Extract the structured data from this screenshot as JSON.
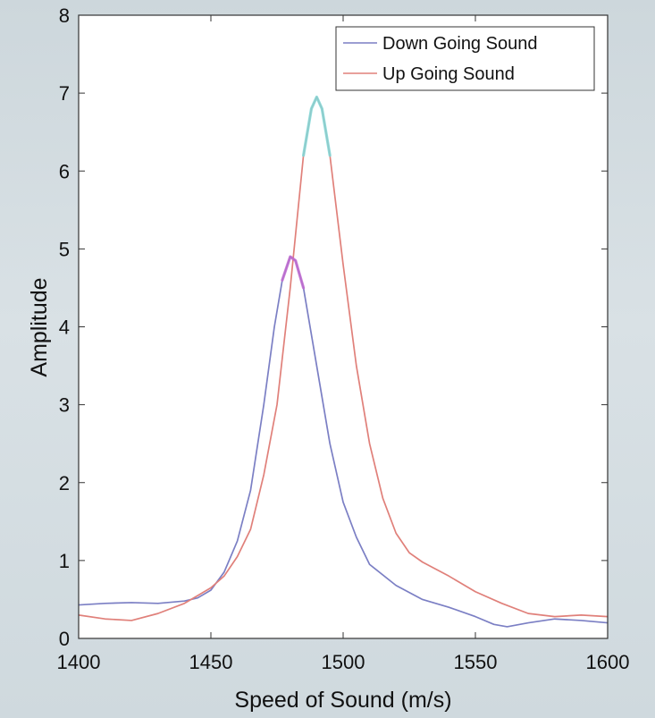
{
  "chart_data": {
    "type": "line",
    "title": "",
    "xlabel": "Speed of Sound (m/s)",
    "ylabel": "Amplitude",
    "xlim": [
      1400,
      1600
    ],
    "ylim": [
      0,
      8
    ],
    "xticks": [
      1400,
      1450,
      1500,
      1550,
      1600
    ],
    "yticks": [
      0,
      1,
      2,
      3,
      4,
      5,
      6,
      7,
      8
    ],
    "grid": false,
    "legend_position": "top-right",
    "series": [
      {
        "name": "Down Going Sound",
        "color": "#7b7fc4",
        "x": [
          1400,
          1410,
          1420,
          1430,
          1440,
          1445,
          1450,
          1455,
          1460,
          1465,
          1470,
          1474,
          1477,
          1480,
          1482,
          1485,
          1490,
          1495,
          1500,
          1505,
          1510,
          1520,
          1530,
          1540,
          1550,
          1557,
          1562,
          1570,
          1580,
          1590,
          1600
        ],
        "y": [
          0.43,
          0.45,
          0.46,
          0.45,
          0.48,
          0.52,
          0.62,
          0.85,
          1.25,
          1.9,
          3.0,
          4.0,
          4.6,
          4.9,
          4.85,
          4.5,
          3.5,
          2.5,
          1.75,
          1.3,
          0.95,
          0.68,
          0.5,
          0.4,
          0.28,
          0.18,
          0.15,
          0.2,
          0.25,
          0.23,
          0.2
        ]
      },
      {
        "name": "Up Going Sound",
        "color": "#e0807a",
        "x": [
          1400,
          1410,
          1420,
          1430,
          1440,
          1445,
          1450,
          1455,
          1460,
          1465,
          1470,
          1475,
          1480,
          1485,
          1488,
          1490,
          1492,
          1495,
          1500,
          1505,
          1510,
          1515,
          1520,
          1525,
          1530,
          1540,
          1550,
          1560,
          1570,
          1580,
          1590,
          1600
        ],
        "y": [
          0.3,
          0.25,
          0.23,
          0.32,
          0.45,
          0.55,
          0.65,
          0.8,
          1.05,
          1.4,
          2.1,
          3.0,
          4.5,
          6.2,
          6.8,
          6.95,
          6.8,
          6.2,
          4.8,
          3.5,
          2.5,
          1.8,
          1.35,
          1.1,
          0.98,
          0.8,
          0.6,
          0.45,
          0.32,
          0.28,
          0.3,
          0.28
        ]
      }
    ],
    "highlight_segments": [
      {
        "series": 0,
        "x_from": 1477,
        "x_to": 1485,
        "color": "#c26bd0"
      },
      {
        "series": 1,
        "x_from": 1485,
        "x_to": 1495,
        "color": "#7fd8d8"
      }
    ]
  }
}
